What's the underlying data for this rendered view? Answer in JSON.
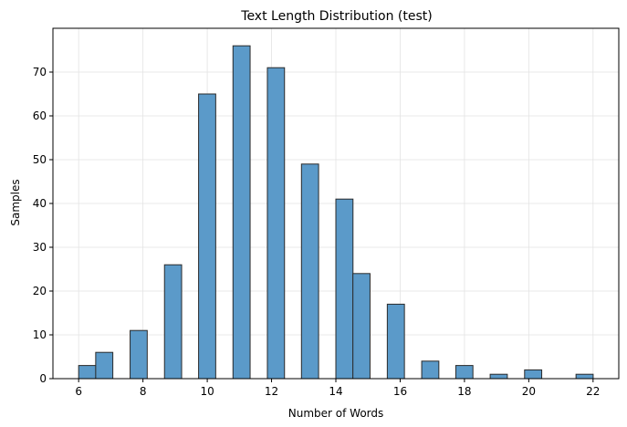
{
  "chart_data": {
    "type": "bar",
    "title": "Text Length Distribution (test)",
    "xlabel": "Number of Words",
    "ylabel": "Samples",
    "xlim": [
      5.2,
      22.8
    ],
    "ylim": [
      0,
      80
    ],
    "xticks": [
      6,
      8,
      10,
      12,
      14,
      16,
      18,
      20,
      22
    ],
    "yticks": [
      0,
      10,
      20,
      30,
      40,
      50,
      60,
      70
    ],
    "grid": true,
    "bin_width": 0.533,
    "bars": [
      {
        "x": 6.0,
        "value": 3
      },
      {
        "x": 6.53,
        "value": 6
      },
      {
        "x": 7.6,
        "value": 11
      },
      {
        "x": 8.67,
        "value": 26
      },
      {
        "x": 9.73,
        "value": 65
      },
      {
        "x": 10.8,
        "value": 76
      },
      {
        "x": 11.87,
        "value": 71
      },
      {
        "x": 12.93,
        "value": 49
      },
      {
        "x": 14.0,
        "value": 41
      },
      {
        "x": 14.53,
        "value": 24
      },
      {
        "x": 15.6,
        "value": 17
      },
      {
        "x": 16.67,
        "value": 4
      },
      {
        "x": 17.73,
        "value": 3
      },
      {
        "x": 18.8,
        "value": 1
      },
      {
        "x": 19.87,
        "value": 2
      },
      {
        "x": 21.47,
        "value": 1
      }
    ],
    "colors": {
      "bar_fill": "#5b9ac9",
      "bar_edge": "#2a2a2a",
      "grid": "#e3e3e3"
    }
  }
}
